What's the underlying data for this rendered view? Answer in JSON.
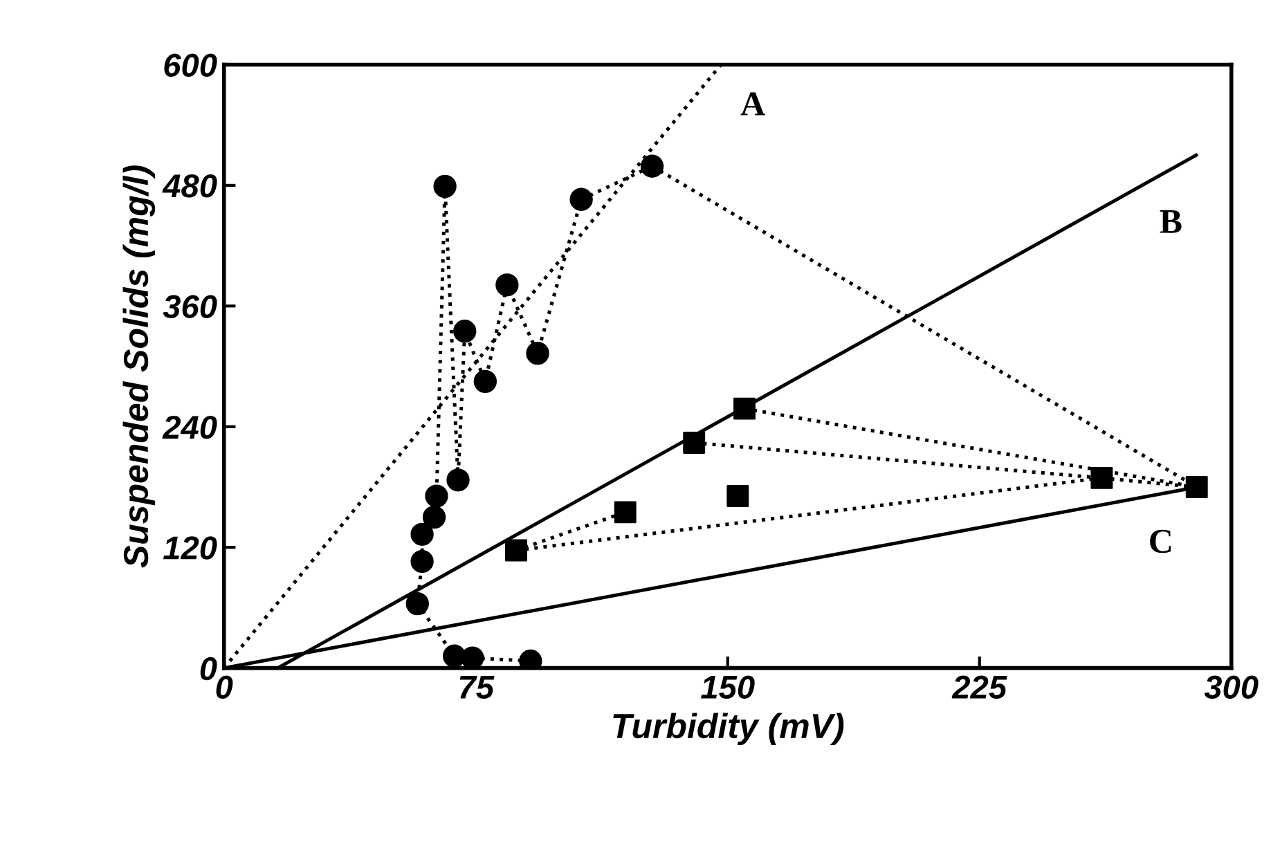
{
  "chart_data": {
    "type": "scatter",
    "xlabel": "Turbidity (mV)",
    "ylabel": "Suspended Solids (mg/l)",
    "xlim": [
      0,
      300
    ],
    "ylim": [
      0,
      600
    ],
    "xticks": [
      0,
      75,
      150,
      225,
      300
    ],
    "yticks": [
      0,
      120,
      240,
      360,
      480,
      600
    ],
    "grid": false,
    "legend": false,
    "series": [
      {
        "type": "line",
        "color": "#000000",
        "marker": "circle",
        "line_style": "dotted",
        "x": [
          91.3,
          74,
          68.6,
          57.6,
          59,
          59,
          62.6,
          63.3,
          65.8,
          69.7,
          71.7,
          77.8,
          84.3,
          93.4,
          106.4,
          127.5
        ],
        "values": [
          7,
          10,
          12,
          64,
          106,
          133,
          150,
          171,
          479,
          187,
          335,
          285,
          381,
          313,
          466,
          499
        ]
      },
      {
        "type": "line",
        "color": "#000000",
        "marker": "none",
        "line_style": "dotted",
        "x": [
          127.5,
          289.7
        ],
        "values": [
          499,
          180
        ]
      },
      {
        "type": "line",
        "color": "#000000",
        "marker": "none",
        "line_style": "dotted",
        "x": [
          87,
          119.5
        ],
        "values": [
          117,
          155
        ]
      },
      {
        "type": "line",
        "color": "#000000",
        "marker": "none",
        "line_style": "dotted",
        "x": [
          87,
          261.4
        ],
        "values": [
          117,
          189
        ]
      },
      {
        "type": "line",
        "color": "#000000",
        "marker": "none",
        "line_style": "dotted",
        "x": [
          140,
          261.4
        ],
        "values": [
          224,
          189
        ]
      },
      {
        "type": "line",
        "color": "#000000",
        "marker": "none",
        "line_style": "dotted",
        "x": [
          155,
          289.7
        ],
        "values": [
          258,
          180
        ]
      },
      {
        "type": "line",
        "color": "#000000",
        "marker": "none",
        "line_style": "dotted",
        "x": [
          261.4,
          289.7
        ],
        "values": [
          189,
          180
        ]
      },
      {
        "color": "#000000",
        "marker": "square",
        "x": [
          87,
          119.5,
          140,
          153,
          155,
          261.4,
          289.7
        ],
        "values": [
          117,
          155,
          224,
          171,
          258,
          189,
          180
        ]
      },
      {
        "type": "line",
        "color": "#000000",
        "marker": "none",
        "line_style": "dotted",
        "x": [
          0,
          148
        ],
        "values": [
          0,
          600
        ]
      },
      {
        "type": "line",
        "color": "#000000",
        "marker": "none",
        "line_style": "solid",
        "x": [
          16,
          289.5
        ],
        "values": [
          0,
          510
        ]
      },
      {
        "type": "line",
        "color": "#000000",
        "marker": "none",
        "line_style": "solid",
        "x": [
          0,
          290
        ],
        "values": [
          0,
          180
        ]
      }
    ],
    "annotations": [
      "A",
      "B",
      "C"
    ]
  }
}
